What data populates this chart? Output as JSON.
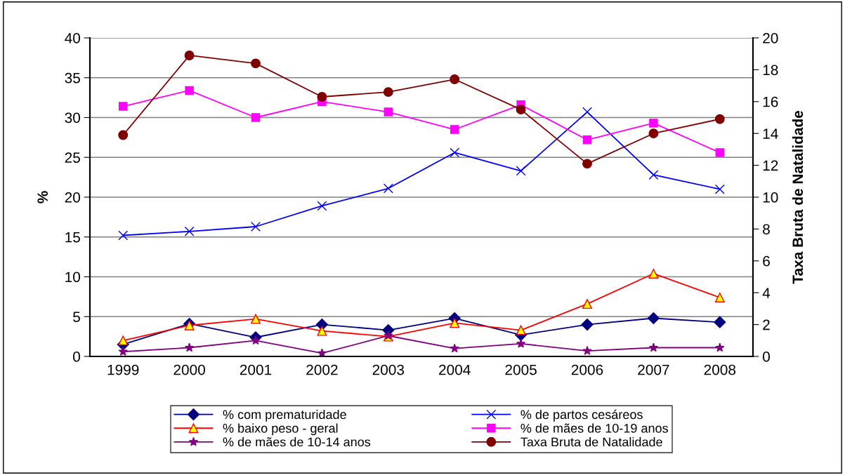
{
  "chart_data": {
    "type": "line",
    "ylabel": "%",
    "y2label": "Taxa Bruta de Natalidade",
    "categories": [
      "1999",
      "2000",
      "2001",
      "2002",
      "2003",
      "2004",
      "2005",
      "2006",
      "2007",
      "2008"
    ],
    "series": [
      {
        "name": "% com prematuridade",
        "color": "#000080",
        "marker": "diamond",
        "values": [
          1.5,
          4.1,
          2.4,
          4.0,
          3.3,
          4.8,
          2.7,
          4.0,
          4.8,
          4.3
        ]
      },
      {
        "name": "% de partos cesáreos",
        "color": "#0000ff",
        "marker": "cross",
        "values": [
          15.2,
          15.7,
          16.3,
          18.9,
          21.1,
          25.6,
          23.3,
          30.7,
          22.8,
          21.0
        ]
      },
      {
        "name": "% baixo peso - geral",
        "color": "#ff0000",
        "marker": "triangle",
        "values": [
          2.0,
          3.9,
          4.7,
          3.2,
          2.5,
          4.2,
          3.3,
          6.6,
          10.4,
          7.4
        ]
      },
      {
        "name": "% de mães de 10-19 anos",
        "color": "#ff00ff",
        "marker": "square",
        "values": [
          31.4,
          33.4,
          30.0,
          32.0,
          30.7,
          28.5,
          31.6,
          27.2,
          29.3,
          25.6
        ]
      },
      {
        "name": "% de mães de 10-14 anos",
        "color": "#800080",
        "marker": "star",
        "values": [
          0.6,
          1.1,
          2.0,
          0.4,
          2.6,
          1.0,
          1.6,
          0.7,
          1.1,
          1.1
        ]
      },
      {
        "name": "Taxa Bruta de Natalidade",
        "color": "#800000",
        "marker": "circle",
        "axis": "y2",
        "values": [
          13.9,
          18.9,
          18.4,
          16.3,
          16.6,
          17.4,
          15.5,
          12.1,
          14.0,
          14.9
        ]
      }
    ],
    "ylim": [
      0,
      40
    ],
    "yticks": [
      0,
      5,
      10,
      15,
      20,
      25,
      30,
      35,
      40
    ],
    "y2lim": [
      0,
      20
    ],
    "y2ticks": [
      0,
      2,
      4,
      6,
      8,
      10,
      12,
      14,
      16,
      18,
      20
    ],
    "grid": "y",
    "legend": "bottom",
    "line_style": "solid"
  }
}
